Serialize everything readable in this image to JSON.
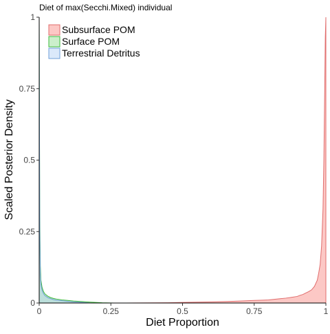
{
  "chart_data": {
    "type": "area",
    "title": "Diet of max(Secchi.Mixed) individual",
    "xlabel": "Diet Proportion",
    "ylabel": "Scaled Posterior Density",
    "xlim": [
      0,
      1
    ],
    "ylim": [
      0,
      1
    ],
    "x_ticks": [
      0,
      0.25,
      0.5,
      0.75,
      1
    ],
    "x_tick_labels": [
      "0",
      "0.25",
      "0.5",
      "0.75",
      "1"
    ],
    "y_ticks": [
      0,
      0.25,
      0.5,
      0.75,
      1
    ],
    "y_tick_labels": [
      "0",
      "0.25",
      "0.5",
      "0.75",
      "1"
    ],
    "grid": false,
    "legend_position": "top-left",
    "series": [
      {
        "name": "Subsurface POM",
        "fill": "#f8766d",
        "stroke": "#e06c6c",
        "x": [
          0,
          0.3,
          0.45,
          0.5,
          0.55,
          0.6,
          0.65,
          0.7,
          0.75,
          0.78,
          0.8,
          0.82,
          0.84,
          0.86,
          0.88,
          0.9,
          0.91,
          0.92,
          0.93,
          0.94,
          0.95,
          0.96,
          0.97,
          0.975,
          0.98,
          0.985,
          0.99,
          0.993,
          0.996,
          0.998,
          1.0
        ],
        "y": [
          0,
          0,
          0.001,
          0.002,
          0.003,
          0.004,
          0.005,
          0.007,
          0.009,
          0.01,
          0.011,
          0.013,
          0.015,
          0.017,
          0.02,
          0.023,
          0.027,
          0.03,
          0.035,
          0.04,
          0.046,
          0.058,
          0.08,
          0.105,
          0.135,
          0.2,
          0.33,
          0.5,
          0.75,
          0.93,
          1.0
        ]
      },
      {
        "name": "Surface POM",
        "fill": "#7cd67c",
        "stroke": "#3cb83c",
        "x": [
          0,
          0.002,
          0.004,
          0.006,
          0.01,
          0.015,
          0.02,
          0.03,
          0.04,
          0.05,
          0.06,
          0.08,
          0.1,
          0.12,
          0.15,
          0.18,
          0.22,
          0.26
        ],
        "y": [
          1.0,
          0.3,
          0.13,
          0.08,
          0.055,
          0.04,
          0.032,
          0.024,
          0.019,
          0.016,
          0.014,
          0.011,
          0.009,
          0.007,
          0.005,
          0.003,
          0.001,
          0
        ]
      },
      {
        "name": "Terrestrial Detritus",
        "fill": "#a6c8f2",
        "stroke": "#6f9fd8",
        "x": [
          0,
          0.002,
          0.004,
          0.006,
          0.01,
          0.015,
          0.02,
          0.03,
          0.04,
          0.05,
          0.06,
          0.08,
          0.1,
          0.12,
          0.15,
          0.18
        ],
        "y": [
          1.0,
          0.25,
          0.1,
          0.065,
          0.045,
          0.033,
          0.026,
          0.019,
          0.015,
          0.012,
          0.01,
          0.008,
          0.006,
          0.004,
          0.002,
          0
        ]
      }
    ]
  }
}
